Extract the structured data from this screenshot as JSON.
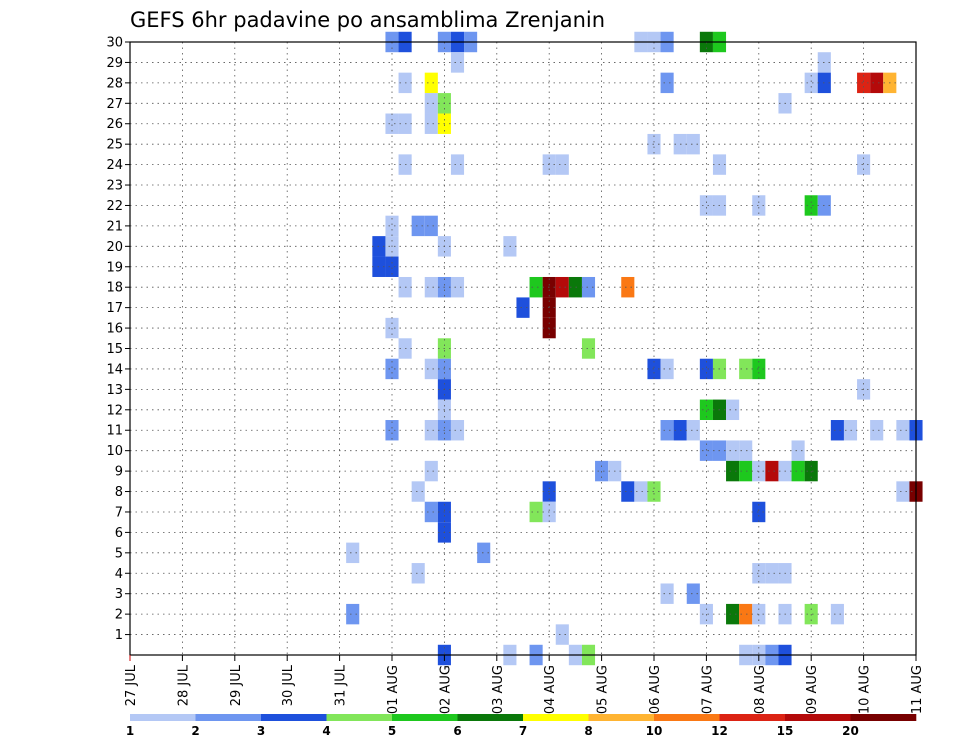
{
  "chart_data": {
    "type": "heatmap",
    "title": "GEFS 6hr padavine po ansamblima Zrenjanin",
    "xlabel": "",
    "ylabel": "",
    "x_start": "27 JUL",
    "x_steps_per_day": 4,
    "x_tick_labels": [
      "27 JUL",
      "28 JUL",
      "29 JUL",
      "30 JUL",
      "31 JUL",
      "01 AUG",
      "02 AUG",
      "03 AUG",
      "04 AUG",
      "05 AUG",
      "06 AUG",
      "07 AUG",
      "08 AUG",
      "09 AUG",
      "10 AUG",
      "11 AUG"
    ],
    "y_range": [
      0,
      30
    ],
    "y_tick_labels": [
      "1",
      "2",
      "3",
      "4",
      "5",
      "6",
      "7",
      "8",
      "9",
      "10",
      "11",
      "12",
      "13",
      "14",
      "15",
      "16",
      "17",
      "18",
      "19",
      "20",
      "21",
      "22",
      "23",
      "24",
      "25",
      "26",
      "27",
      "28",
      "29",
      "30"
    ],
    "grid": true,
    "legend_placement": "bottom",
    "legend": {
      "boundaries": [
        "1",
        "2",
        "3",
        "4",
        "5",
        "6",
        "7",
        "8",
        "10",
        "12",
        "15",
        "20"
      ],
      "colors": [
        "#b4c8f5",
        "#6e96f0",
        "#1e50dc",
        "#82e65a",
        "#1ec81e",
        "#0a780a",
        "#ffff00",
        "#ffb432",
        "#fa7814",
        "#dc2314",
        "#b40a0a",
        "#780000"
      ]
    },
    "cells_note": "each cell: [ensemble_member, 6h_step_from_x_start, precip_class_index]",
    "cells": [
      [
        30,
        20,
        1
      ],
      [
        30,
        21,
        2
      ],
      [
        30,
        24,
        1
      ],
      [
        30,
        25,
        2
      ],
      [
        30,
        26,
        1
      ],
      [
        30,
        39,
        0
      ],
      [
        30,
        40,
        0
      ],
      [
        30,
        41,
        1
      ],
      [
        30,
        44,
        5
      ],
      [
        30,
        45,
        4
      ],
      [
        29,
        25,
        0
      ],
      [
        29,
        53,
        0
      ],
      [
        28,
        21,
        0
      ],
      [
        28,
        23,
        6
      ],
      [
        28,
        41,
        1
      ],
      [
        28,
        52,
        0
      ],
      [
        28,
        53,
        2
      ],
      [
        28,
        56,
        9
      ],
      [
        28,
        57,
        10
      ],
      [
        28,
        58,
        7
      ],
      [
        27,
        23,
        0
      ],
      [
        27,
        24,
        3
      ],
      [
        27,
        50,
        0
      ],
      [
        26,
        20,
        0
      ],
      [
        26,
        21,
        0
      ],
      [
        26,
        23,
        0
      ],
      [
        26,
        24,
        6
      ],
      [
        25,
        40,
        0
      ],
      [
        25,
        42,
        0
      ],
      [
        25,
        43,
        0
      ],
      [
        24,
        21,
        0
      ],
      [
        24,
        25,
        0
      ],
      [
        24,
        32,
        0
      ],
      [
        24,
        33,
        0
      ],
      [
        24,
        56,
        0
      ],
      [
        22,
        44,
        0
      ],
      [
        24,
        45,
        0
      ],
      [
        22,
        45,
        0
      ],
      [
        22,
        48,
        0
      ],
      [
        22,
        52,
        4
      ],
      [
        22,
        53,
        1
      ],
      [
        21,
        20,
        0
      ],
      [
        21,
        22,
        1
      ],
      [
        21,
        23,
        1
      ],
      [
        20,
        19,
        2
      ],
      [
        20,
        20,
        0
      ],
      [
        20,
        24,
        0
      ],
      [
        20,
        29,
        0
      ],
      [
        19,
        19,
        2
      ],
      [
        19,
        20,
        2
      ],
      [
        18,
        21,
        0
      ],
      [
        18,
        23,
        0
      ],
      [
        18,
        24,
        1
      ],
      [
        18,
        25,
        0
      ],
      [
        18,
        31,
        4
      ],
      [
        18,
        32,
        11
      ],
      [
        18,
        33,
        10
      ],
      [
        18,
        34,
        5
      ],
      [
        18,
        35,
        1
      ],
      [
        18,
        38,
        8
      ],
      [
        17,
        30,
        2
      ],
      [
        17,
        32,
        11
      ],
      [
        16,
        20,
        0
      ],
      [
        16,
        32,
        11
      ],
      [
        15,
        21,
        0
      ],
      [
        15,
        24,
        3
      ],
      [
        15,
        35,
        3
      ],
      [
        14,
        20,
        1
      ],
      [
        14,
        23,
        0
      ],
      [
        14,
        24,
        1
      ],
      [
        14,
        40,
        2
      ],
      [
        14,
        41,
        0
      ],
      [
        14,
        44,
        2
      ],
      [
        14,
        45,
        3
      ],
      [
        14,
        47,
        3
      ],
      [
        14,
        48,
        4
      ],
      [
        13,
        24,
        2
      ],
      [
        13,
        56,
        0
      ],
      [
        12,
        24,
        0
      ],
      [
        12,
        44,
        4
      ],
      [
        12,
        45,
        5
      ],
      [
        12,
        46,
        0
      ],
      [
        11,
        20,
        1
      ],
      [
        11,
        23,
        0
      ],
      [
        11,
        24,
        1
      ],
      [
        11,
        25,
        0
      ],
      [
        11,
        41,
        1
      ],
      [
        11,
        42,
        2
      ],
      [
        11,
        43,
        0
      ],
      [
        11,
        54,
        2
      ],
      [
        11,
        55,
        0
      ],
      [
        11,
        57,
        0
      ],
      [
        11,
        59,
        0
      ],
      [
        11,
        60,
        2
      ],
      [
        10,
        44,
        1
      ],
      [
        10,
        45,
        1
      ],
      [
        10,
        46,
        0
      ],
      [
        10,
        47,
        0
      ],
      [
        10,
        51,
        0
      ],
      [
        9,
        23,
        0
      ],
      [
        9,
        36,
        1
      ],
      [
        9,
        37,
        0
      ],
      [
        9,
        46,
        5
      ],
      [
        9,
        47,
        4
      ],
      [
        9,
        48,
        0
      ],
      [
        9,
        49,
        10
      ],
      [
        9,
        50,
        0
      ],
      [
        9,
        51,
        4
      ],
      [
        9,
        52,
        5
      ],
      [
        8,
        22,
        0
      ],
      [
        8,
        32,
        2
      ],
      [
        8,
        38,
        2
      ],
      [
        8,
        39,
        0
      ],
      [
        8,
        40,
        3
      ],
      [
        8,
        59,
        0
      ],
      [
        8,
        60,
        11
      ],
      [
        7,
        23,
        1
      ],
      [
        7,
        24,
        2
      ],
      [
        7,
        31,
        3
      ],
      [
        7,
        32,
        0
      ],
      [
        7,
        48,
        2
      ],
      [
        6,
        24,
        2
      ],
      [
        5,
        17,
        0
      ],
      [
        5,
        27,
        1
      ],
      [
        4,
        22,
        0
      ],
      [
        4,
        48,
        0
      ],
      [
        4,
        49,
        0
      ],
      [
        4,
        50,
        0
      ],
      [
        3,
        41,
        0
      ],
      [
        3,
        43,
        1
      ],
      [
        2,
        17,
        1
      ],
      [
        2,
        44,
        0
      ],
      [
        2,
        46,
        5
      ],
      [
        2,
        47,
        8
      ],
      [
        2,
        48,
        0
      ],
      [
        2,
        50,
        0
      ],
      [
        2,
        52,
        3
      ],
      [
        2,
        54,
        0
      ],
      [
        1,
        33,
        0
      ],
      [
        0,
        24,
        2
      ],
      [
        0,
        29,
        0
      ],
      [
        0,
        31,
        1
      ],
      [
        0,
        34,
        0
      ],
      [
        0,
        35,
        3
      ],
      [
        0,
        47,
        0
      ],
      [
        0,
        48,
        0
      ],
      [
        0,
        49,
        1
      ],
      [
        0,
        50,
        2
      ]
    ]
  }
}
